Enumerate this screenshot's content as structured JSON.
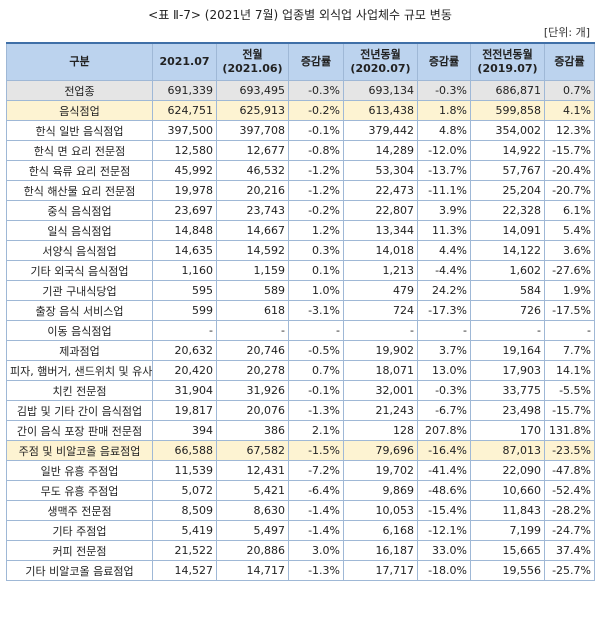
{
  "title": "<표 Ⅱ-7> (2021년 7월) 업종별 외식업 사업체수 규모 변동",
  "unit": "[단위: 개]",
  "columns": [
    "구분",
    "2021.07",
    "전월\n(2021.06)",
    "증감률",
    "전년동월\n(2020.07)",
    "증감률",
    "전전년동월\n(2019.07)",
    "증감률"
  ],
  "rows": [
    {
      "name": "전업종",
      "c": [
        "691,339",
        "693,495",
        "-0.3%",
        "693,134",
        "-0.3%",
        "686,871",
        "0.7%"
      ],
      "style": "all"
    },
    {
      "name": "음식점업",
      "c": [
        "624,751",
        "625,913",
        "-0.2%",
        "613,438",
        "1.8%",
        "599,858",
        "4.1%"
      ],
      "style": "hl"
    },
    {
      "name": "한식 일반 음식점업",
      "c": [
        "397,500",
        "397,708",
        "-0.1%",
        "379,442",
        "4.8%",
        "354,002",
        "12.3%"
      ],
      "style": ""
    },
    {
      "name": "한식 면 요리 전문점",
      "c": [
        "12,580",
        "12,677",
        "-0.8%",
        "14,289",
        "-12.0%",
        "14,922",
        "-15.7%"
      ],
      "style": ""
    },
    {
      "name": "한식 육류 요리 전문점",
      "c": [
        "45,992",
        "46,532",
        "-1.2%",
        "53,304",
        "-13.7%",
        "57,767",
        "-20.4%"
      ],
      "style": ""
    },
    {
      "name": "한식 해산물 요리 전문점",
      "c": [
        "19,978",
        "20,216",
        "-1.2%",
        "22,473",
        "-11.1%",
        "25,204",
        "-20.7%"
      ],
      "style": ""
    },
    {
      "name": "중식 음식점업",
      "c": [
        "23,697",
        "23,743",
        "-0.2%",
        "22,807",
        "3.9%",
        "22,328",
        "6.1%"
      ],
      "style": ""
    },
    {
      "name": "일식 음식점업",
      "c": [
        "14,848",
        "14,667",
        "1.2%",
        "13,344",
        "11.3%",
        "14,091",
        "5.4%"
      ],
      "style": ""
    },
    {
      "name": "서양식 음식점업",
      "c": [
        "14,635",
        "14,592",
        "0.3%",
        "14,018",
        "4.4%",
        "14,122",
        "3.6%"
      ],
      "style": ""
    },
    {
      "name": "기타 외국식 음식점업",
      "c": [
        "1,160",
        "1,159",
        "0.1%",
        "1,213",
        "-4.4%",
        "1,602",
        "-27.6%"
      ],
      "style": ""
    },
    {
      "name": "기관 구내식당업",
      "c": [
        "595",
        "589",
        "1.0%",
        "479",
        "24.2%",
        "584",
        "1.9%"
      ],
      "style": ""
    },
    {
      "name": "출장 음식 서비스업",
      "c": [
        "599",
        "618",
        "-3.1%",
        "724",
        "-17.3%",
        "726",
        "-17.5%"
      ],
      "style": ""
    },
    {
      "name": "이동 음식점업",
      "c": [
        "-",
        "-",
        "-",
        "-",
        "-",
        "-",
        "-"
      ],
      "style": ""
    },
    {
      "name": "제과점업",
      "c": [
        "20,632",
        "20,746",
        "-0.5%",
        "19,902",
        "3.7%",
        "19,164",
        "7.7%"
      ],
      "style": ""
    },
    {
      "name": "피자, 햄버거, 샌드위치 및 유사",
      "c": [
        "20,420",
        "20,278",
        "0.7%",
        "18,071",
        "13.0%",
        "17,903",
        "14.1%"
      ],
      "style": ""
    },
    {
      "name": "치킨 전문점",
      "c": [
        "31,904",
        "31,926",
        "-0.1%",
        "32,001",
        "-0.3%",
        "33,775",
        "-5.5%"
      ],
      "style": ""
    },
    {
      "name": "김밥 및 기타 간이 음식점업",
      "c": [
        "19,817",
        "20,076",
        "-1.3%",
        "21,243",
        "-6.7%",
        "23,498",
        "-15.7%"
      ],
      "style": ""
    },
    {
      "name": "간이 음식 포장 판매 전문점",
      "c": [
        "394",
        "386",
        "2.1%",
        "128",
        "207.8%",
        "170",
        "131.8%"
      ],
      "style": ""
    },
    {
      "name": "주점 및 비알코올 음료점업",
      "c": [
        "66,588",
        "67,582",
        "-1.5%",
        "79,696",
        "-16.4%",
        "87,013",
        "-23.5%"
      ],
      "style": "hl"
    },
    {
      "name": "일반 유흥 주점업",
      "c": [
        "11,539",
        "12,431",
        "-7.2%",
        "19,702",
        "-41.4%",
        "22,090",
        "-47.8%"
      ],
      "style": ""
    },
    {
      "name": "무도 유흥 주점업",
      "c": [
        "5,072",
        "5,421",
        "-6.4%",
        "9,869",
        "-48.6%",
        "10,660",
        "-52.4%"
      ],
      "style": ""
    },
    {
      "name": "생맥주 전문점",
      "c": [
        "8,509",
        "8,630",
        "-1.4%",
        "10,053",
        "-15.4%",
        "11,843",
        "-28.2%"
      ],
      "style": ""
    },
    {
      "name": "기타 주점업",
      "c": [
        "5,419",
        "5,497",
        "-1.4%",
        "6,168",
        "-12.1%",
        "7,199",
        "-24.7%"
      ],
      "style": ""
    },
    {
      "name": "커피 전문점",
      "c": [
        "21,522",
        "20,886",
        "3.0%",
        "16,187",
        "33.0%",
        "15,665",
        "37.4%"
      ],
      "style": ""
    },
    {
      "name": "기타 비알코올 음료점업",
      "c": [
        "14,527",
        "14,717",
        "-1.3%",
        "17,717",
        "-18.0%",
        "19,556",
        "-25.7%"
      ],
      "style": ""
    }
  ]
}
